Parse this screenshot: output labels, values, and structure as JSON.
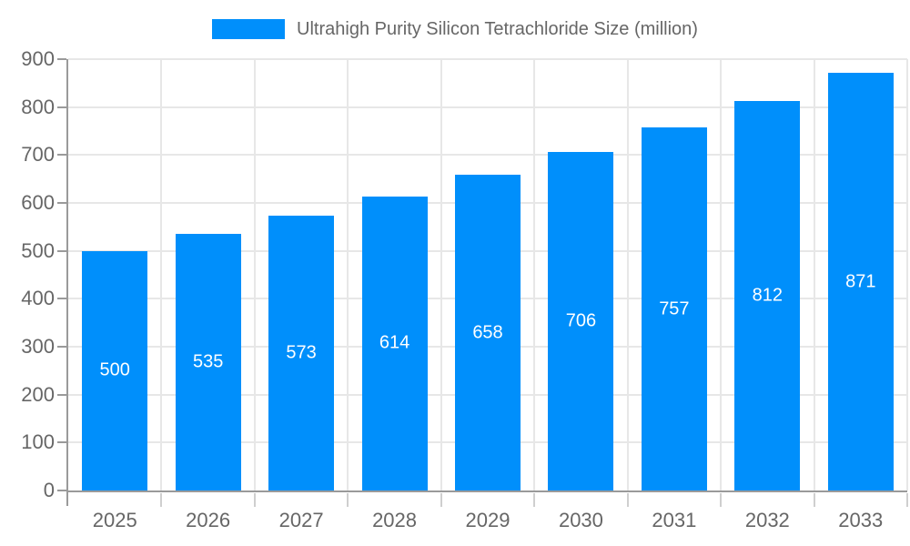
{
  "chart_data": {
    "type": "bar",
    "title": "",
    "legend_entries": [
      "Ultrahigh Purity Silicon Tetrachloride Size (million)"
    ],
    "legend_position": "top",
    "categories": [
      "2025",
      "2026",
      "2027",
      "2028",
      "2029",
      "2030",
      "2031",
      "2032",
      "2033"
    ],
    "values": [
      500,
      535,
      573,
      614,
      658,
      706,
      757,
      812,
      871
    ],
    "xlabel": "",
    "ylabel": "",
    "ylim": [
      0,
      900
    ],
    "ytick_step": 100,
    "yticks": [
      0,
      100,
      200,
      300,
      400,
      500,
      600,
      700,
      800,
      900
    ],
    "grid": true,
    "bar_value_labels_shown": true,
    "colors": {
      "bar": "#008FFB",
      "value_label": "#ffffff",
      "legend_text": "#666666",
      "axis_line": "#9a9a9a",
      "tick_label": "#666666",
      "gridline": "#e7e7e7",
      "boundary_tick": "#cfcfcf"
    }
  }
}
